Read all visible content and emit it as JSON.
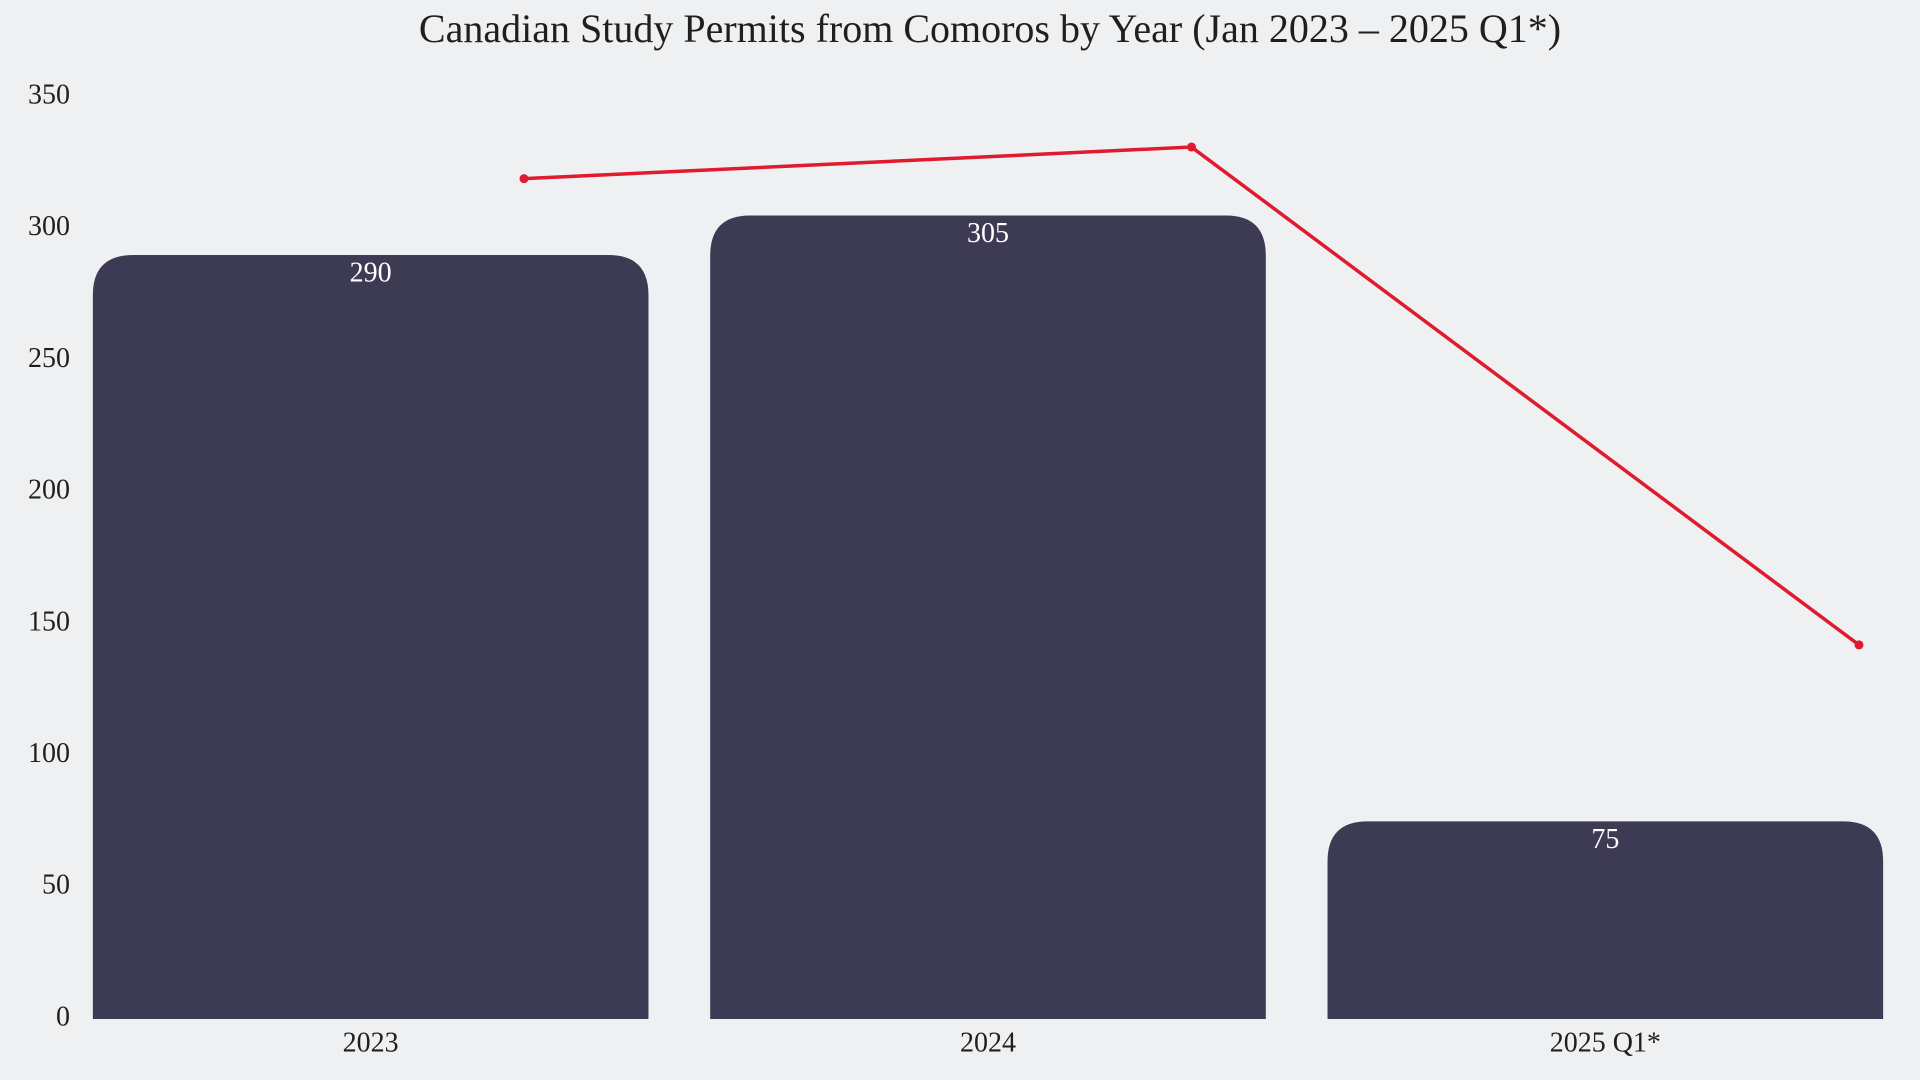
{
  "chart_data": {
    "type": "bar",
    "title": "Canadian Study Permits from Comoros by Year (Jan 2023 – 2025 Q1*)",
    "categories": [
      "2023",
      "2024",
      "2025 Q1*"
    ],
    "series": [
      {
        "type": "bar",
        "color": "#3d3a54",
        "values": [
          290,
          305,
          75
        ]
      },
      {
        "type": "line",
        "color": "#e01a2f",
        "values": [
          319,
          331,
          142
        ]
      }
    ],
    "ylim": [
      0,
      350
    ],
    "yticks": [
      0,
      50,
      100,
      150,
      200,
      250,
      300,
      350
    ],
    "grid": false
  }
}
